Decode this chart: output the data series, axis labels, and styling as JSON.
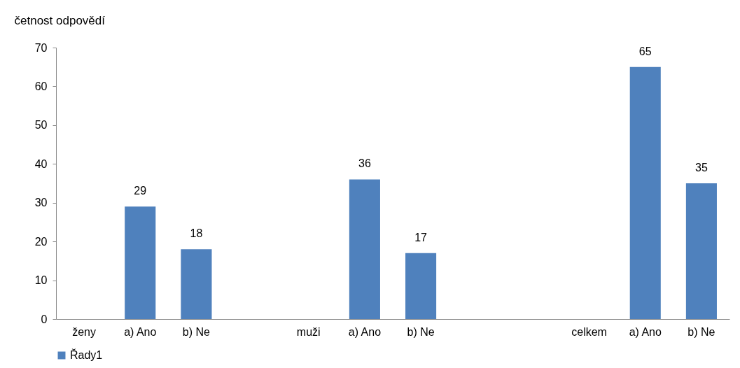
{
  "chart_data": {
    "type": "bar",
    "ylabel": "četnost odpovědí",
    "categories": [
      "ženy",
      "a) Ano",
      "b) Ne",
      null,
      "muži",
      "a) Ano",
      "b) Ne",
      null,
      null,
      "celkem",
      "a) Ano",
      "b) Ne"
    ],
    "series": [
      {
        "name": "Řady1",
        "color": "#4f81bd",
        "values": [
          null,
          29,
          18,
          null,
          null,
          36,
          17,
          null,
          null,
          null,
          65,
          35
        ]
      }
    ],
    "ylim": [
      0,
      70
    ],
    "yticks": [
      0,
      10,
      20,
      30,
      40,
      50,
      60,
      70
    ],
    "data_labels": true,
    "legend": "bottom",
    "grid": false
  }
}
